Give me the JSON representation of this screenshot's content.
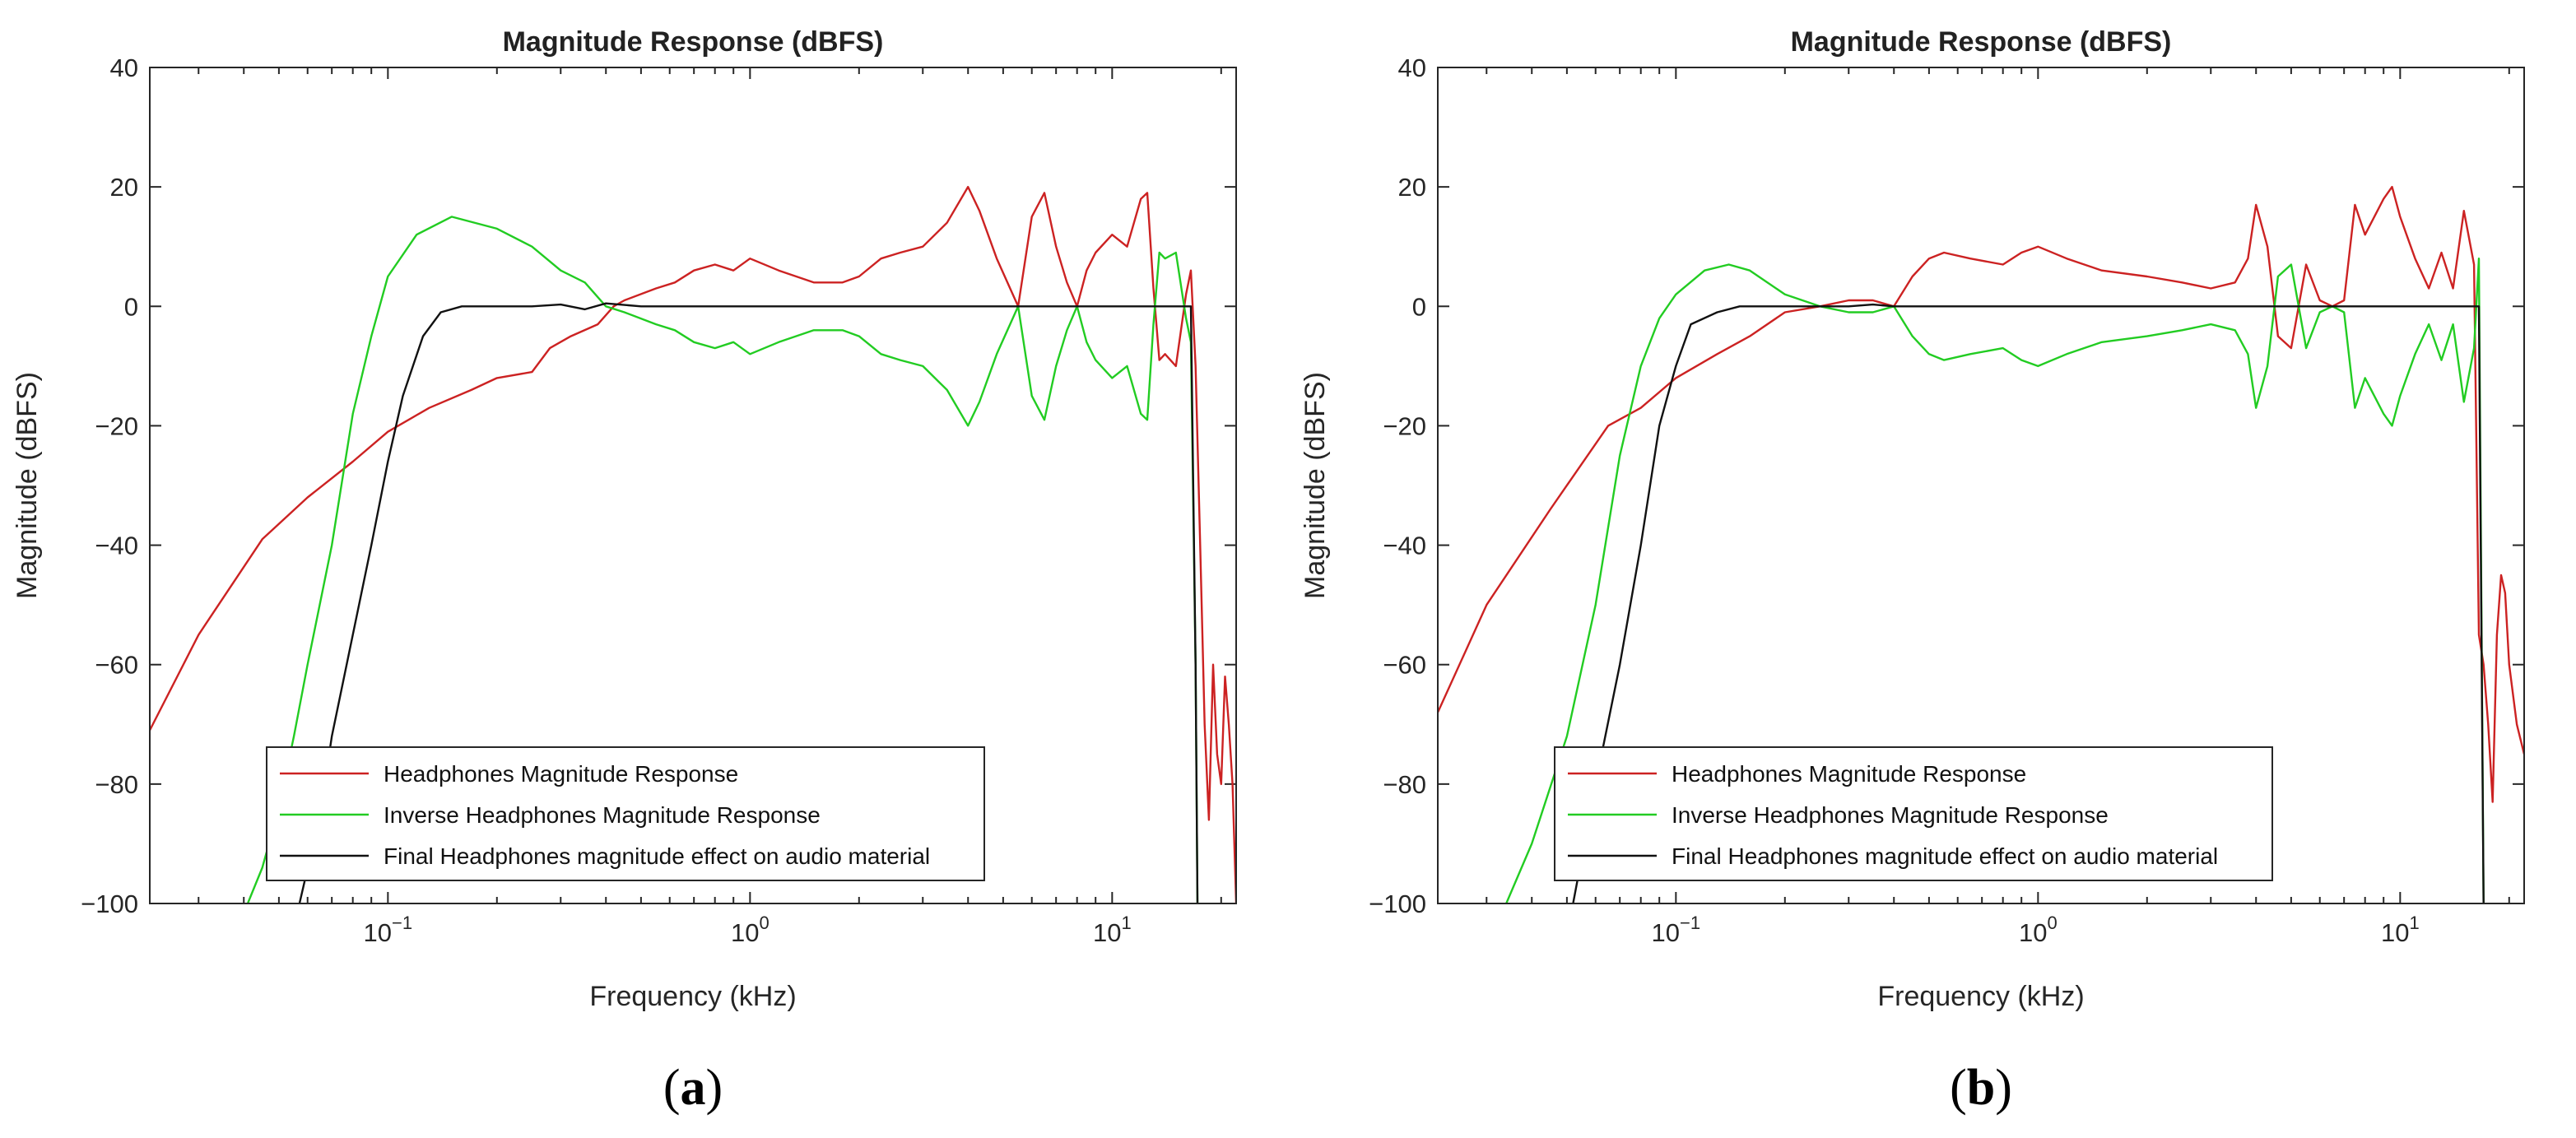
{
  "chart_data": [
    {
      "panel": "a",
      "caption": "a",
      "type": "line",
      "title": "Magnitude Response (dBFS)",
      "xlabel": "Frequency (kHz)",
      "ylabel": "Magnitude (dBFS)",
      "xscale": "log",
      "xlim": [
        0.022,
        22
      ],
      "ylim": [
        -100,
        40
      ],
      "yticks": [
        40,
        20,
        0,
        -20,
        -40,
        -60,
        -80,
        -100
      ],
      "yticklabels": [
        "40",
        "20",
        "0",
        "−20",
        "−40",
        "−60",
        "−80",
        "−100"
      ],
      "xticks": [
        {
          "value": 0.1,
          "base": "10",
          "exp": "−1"
        },
        {
          "value": 1,
          "base": "10",
          "exp": "0"
        },
        {
          "value": 10,
          "base": "10",
          "exp": "1"
        }
      ],
      "legend_position": "bottom-center",
      "series": [
        {
          "name": "Headphones Magnitude Response",
          "color": "#cc2222",
          "x": [
            0.022,
            0.03,
            0.045,
            0.06,
            0.08,
            0.1,
            0.13,
            0.17,
            0.2,
            0.25,
            0.28,
            0.32,
            0.38,
            0.42,
            0.45,
            0.55,
            0.62,
            0.7,
            0.8,
            0.9,
            1.0,
            1.2,
            1.5,
            1.8,
            2.0,
            2.3,
            2.6,
            3.0,
            3.5,
            4.0,
            4.3,
            4.8,
            5.5,
            6.0,
            6.5,
            7.0,
            7.5,
            8.0,
            8.5,
            9.0,
            10.0,
            11.0,
            12.0,
            12.5,
            13.0,
            13.5,
            14.0,
            15.0,
            16.0,
            16.5,
            17.0,
            17.5,
            18.0,
            18.5,
            19.0,
            19.5,
            20.0,
            20.5,
            21.0,
            21.5,
            22.0
          ],
          "y": [
            -71,
            -55,
            -39,
            -32,
            -26,
            -21,
            -17,
            -14,
            -12,
            -11,
            -7,
            -5,
            -3,
            0,
            1,
            3,
            4,
            6,
            7,
            6,
            8,
            6,
            4,
            4,
            5,
            8,
            9,
            10,
            14,
            20,
            16,
            8,
            0,
            15,
            19,
            10,
            4,
            0,
            6,
            9,
            12,
            10,
            18,
            19,
            3,
            -9,
            -8,
            -10,
            2,
            6,
            -10,
            -40,
            -70,
            -86,
            -60,
            -75,
            -80,
            -62,
            -70,
            -80,
            -100
          ]
        },
        {
          "name": "Inverse Headphones Magnitude Response",
          "color": "#22cc22",
          "x": [
            0.041,
            0.045,
            0.05,
            0.055,
            0.06,
            0.07,
            0.08,
            0.09,
            0.1,
            0.12,
            0.15,
            0.2,
            0.25,
            0.3,
            0.35,
            0.4,
            0.45,
            0.55,
            0.62,
            0.7,
            0.8,
            0.9,
            1.0,
            1.2,
            1.5,
            1.8,
            2.0,
            2.3,
            2.6,
            3.0,
            3.5,
            4.0,
            4.3,
            4.8,
            5.5,
            6.0,
            6.5,
            7.0,
            7.5,
            8.0,
            8.5,
            9.0,
            10.0,
            11.0,
            12.0,
            12.5,
            13.0,
            13.5,
            14.0,
            15.0,
            16.0,
            16.5,
            17.0,
            17.2
          ],
          "y": [
            -100,
            -94,
            -84,
            -72,
            -60,
            -40,
            -18,
            -5,
            5,
            12,
            15,
            13,
            10,
            6,
            4,
            0,
            -1,
            -3,
            -4,
            -6,
            -7,
            -6,
            -8,
            -6,
            -4,
            -4,
            -5,
            -8,
            -9,
            -10,
            -14,
            -20,
            -16,
            -8,
            0,
            -15,
            -19,
            -10,
            -4,
            0,
            -6,
            -9,
            -12,
            -10,
            -18,
            -19,
            -3,
            9,
            8,
            9,
            -2,
            -6,
            -60,
            -100
          ]
        },
        {
          "name": "Final Headphones magnitude effect on audio material",
          "color": "#111111",
          "x": [
            0.057,
            0.065,
            0.07,
            0.08,
            0.09,
            0.1,
            0.11,
            0.125,
            0.14,
            0.16,
            0.2,
            0.25,
            0.3,
            0.35,
            0.4,
            0.5,
            1.0,
            2.0,
            5.0,
            10.0,
            15.0,
            16.5,
            17.0,
            17.2
          ],
          "y": [
            -100,
            -85,
            -72,
            -55,
            -40,
            -26,
            -15,
            -5,
            -1,
            0,
            0,
            0,
            0.3,
            -0.5,
            0.5,
            0,
            0,
            0,
            0,
            0,
            0,
            0,
            -60,
            -100
          ]
        }
      ]
    },
    {
      "panel": "b",
      "caption": "b",
      "type": "line",
      "title": "Magnitude Response (dBFS)",
      "xlabel": "Frequency (kHz)",
      "ylabel": "Magnitude (dBFS)",
      "xscale": "log",
      "xlim": [
        0.022,
        22
      ],
      "ylim": [
        -100,
        40
      ],
      "yticks": [
        40,
        20,
        0,
        -20,
        -40,
        -60,
        -80,
        -100
      ],
      "yticklabels": [
        "40",
        "20",
        "0",
        "−20",
        "−40",
        "−60",
        "−80",
        "−100"
      ],
      "xticks": [
        {
          "value": 0.1,
          "base": "10",
          "exp": "−1"
        },
        {
          "value": 1,
          "base": "10",
          "exp": "0"
        },
        {
          "value": 10,
          "base": "10",
          "exp": "1"
        }
      ],
      "legend_position": "bottom-center",
      "series": [
        {
          "name": "Headphones Magnitude Response",
          "color": "#cc2222",
          "x": [
            0.022,
            0.03,
            0.045,
            0.065,
            0.08,
            0.1,
            0.13,
            0.16,
            0.2,
            0.25,
            0.3,
            0.35,
            0.4,
            0.45,
            0.5,
            0.55,
            0.65,
            0.8,
            0.9,
            1.0,
            1.2,
            1.5,
            2.0,
            2.5,
            3.0,
            3.5,
            3.8,
            4.0,
            4.3,
            4.6,
            5.0,
            5.5,
            6.0,
            6.5,
            7.0,
            7.5,
            8.0,
            9.0,
            9.5,
            10.0,
            11.0,
            12.0,
            13.0,
            14.0,
            15.0,
            16.0,
            16.5,
            17.0,
            17.5,
            18.0,
            18.5,
            19.0,
            19.5,
            20.0,
            21.0,
            22.0
          ],
          "y": [
            -68,
            -50,
            -34,
            -20,
            -17,
            -12,
            -8,
            -5,
            -1,
            0,
            1,
            1,
            0,
            5,
            8,
            9,
            8,
            7,
            9,
            10,
            8,
            6,
            5,
            4,
            3,
            4,
            8,
            17,
            10,
            -5,
            -7,
            7,
            1,
            0,
            1,
            17,
            12,
            18,
            20,
            15,
            8,
            3,
            9,
            3,
            16,
            7,
            -55,
            -60,
            -70,
            -83,
            -55,
            -45,
            -48,
            -60,
            -70,
            -75
          ]
        },
        {
          "name": "Inverse Headphones Magnitude Response",
          "color": "#22cc22",
          "x": [
            0.034,
            0.04,
            0.05,
            0.06,
            0.07,
            0.08,
            0.09,
            0.1,
            0.12,
            0.14,
            0.16,
            0.2,
            0.25,
            0.3,
            0.35,
            0.4,
            0.45,
            0.5,
            0.55,
            0.65,
            0.8,
            0.9,
            1.0,
            1.2,
            1.5,
            2.0,
            2.5,
            3.0,
            3.5,
            3.8,
            4.0,
            4.3,
            4.6,
            5.0,
            5.5,
            6.0,
            6.5,
            7.0,
            7.5,
            8.0,
            9.0,
            9.5,
            10.0,
            11.0,
            12.0,
            13.0,
            14.0,
            15.0,
            16.0,
            16.5,
            17.0
          ],
          "y": [
            -100,
            -90,
            -72,
            -50,
            -25,
            -10,
            -2,
            2,
            6,
            7,
            6,
            2,
            0,
            -1,
            -1,
            0,
            -5,
            -8,
            -9,
            -8,
            -7,
            -9,
            -10,
            -8,
            -6,
            -5,
            -4,
            -3,
            -4,
            -8,
            -17,
            -10,
            5,
            7,
            -7,
            -1,
            0,
            -1,
            -17,
            -12,
            -18,
            -20,
            -15,
            -8,
            -3,
            -9,
            -3,
            -16,
            -7,
            8,
            -100
          ]
        },
        {
          "name": "Final Headphones magnitude effect on audio material",
          "color": "#111111",
          "x": [
            0.052,
            0.06,
            0.07,
            0.08,
            0.09,
            0.1,
            0.11,
            0.13,
            0.15,
            0.2,
            0.25,
            0.3,
            0.35,
            0.4,
            0.5,
            1.0,
            2.0,
            5.0,
            10.0,
            15.0,
            16.5,
            17.0
          ],
          "y": [
            -100,
            -80,
            -60,
            -40,
            -20,
            -10,
            -3,
            -1,
            0,
            0,
            0,
            0,
            0.3,
            0,
            0,
            0,
            0,
            0,
            0,
            0,
            0,
            -100
          ]
        }
      ]
    }
  ]
}
